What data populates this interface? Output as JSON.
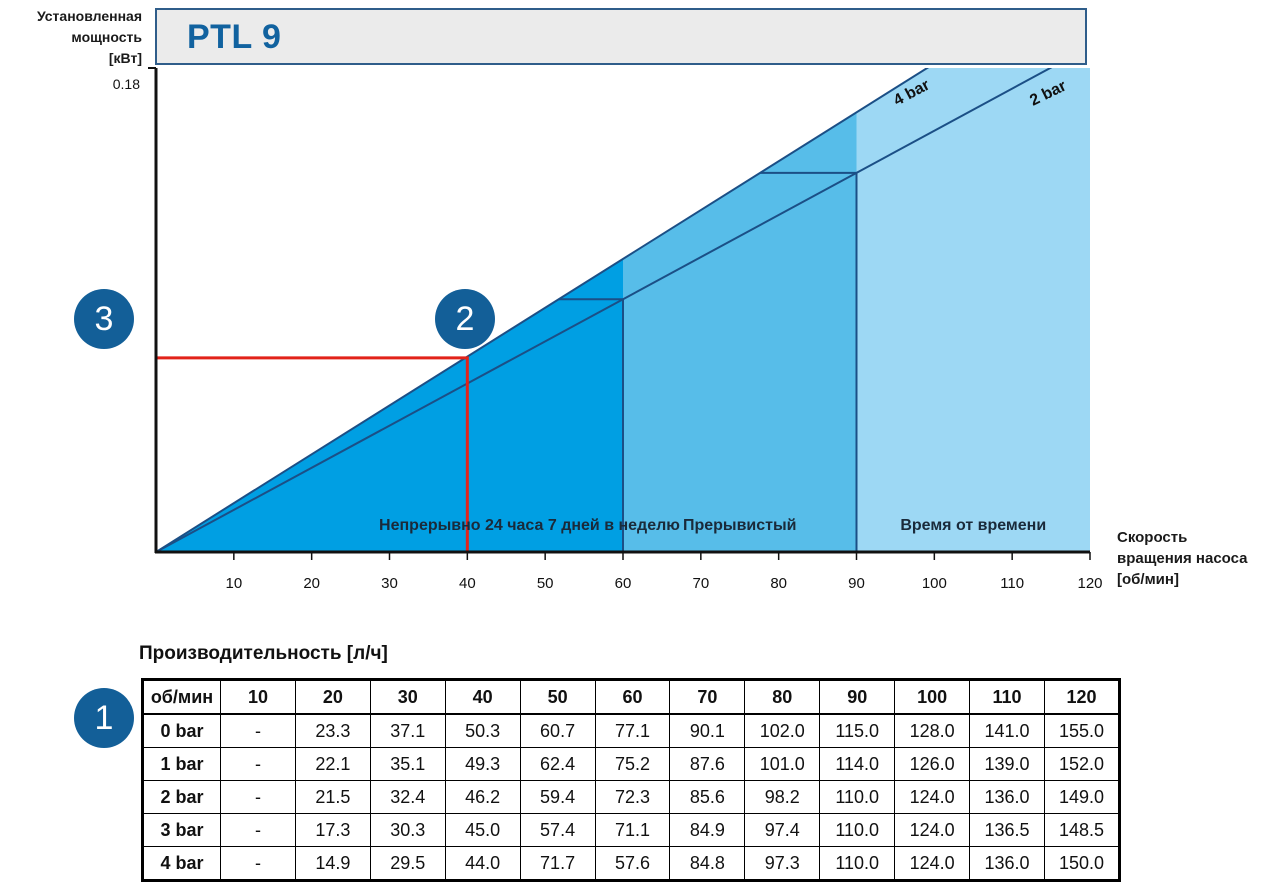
{
  "header": {
    "title": "PTL 9"
  },
  "chart_data": {
    "type": "area",
    "title": "PTL 9",
    "ylabel": [
      "Установленная",
      "мощность",
      "[кВт]"
    ],
    "xlabel": [
      "Скорость",
      "вращения насоса",
      "[об/мин]"
    ],
    "ylim": [
      0,
      0.18
    ],
    "xlim": [
      0,
      120
    ],
    "y_tick_labels": [
      "0.18"
    ],
    "x_ticks": [
      10,
      20,
      30,
      40,
      50,
      60,
      70,
      80,
      90,
      100,
      110,
      120
    ],
    "series": [
      {
        "name": "4 bar",
        "x": [
          0,
          120
        ],
        "y": [
          0,
          0.218
        ]
      },
      {
        "name": "2 bar",
        "x": [
          0,
          120
        ],
        "y": [
          0,
          0.188
        ]
      }
    ],
    "zones": [
      {
        "label": "Непрерывно 24 часа 7 дней в неделю",
        "x_from": 0,
        "x_to": 60,
        "color": "#009fe3"
      },
      {
        "label": "Прерывистый",
        "x_from": 60,
        "x_to": 90,
        "color": "#57bde9"
      },
      {
        "label": "Время от времени",
        "x_from": 90,
        "x_to": 120,
        "color": "#9dd8f4"
      }
    ],
    "marker": {
      "x": 40,
      "y": 0.0722,
      "color": "#e2231a"
    },
    "callouts": [
      "1",
      "2",
      "3"
    ]
  },
  "table": {
    "title": "Производительность [л/ч]",
    "headers": [
      "об/мин",
      "10",
      "20",
      "30",
      "40",
      "50",
      "60",
      "70",
      "80",
      "90",
      "100",
      "110",
      "120"
    ],
    "rows": [
      [
        "0 bar",
        "-",
        "23.3",
        "37.1",
        "50.3",
        "60.7",
        "77.1",
        "90.1",
        "102.0",
        "115.0",
        "128.0",
        "141.0",
        "155.0"
      ],
      [
        "1 bar",
        "-",
        "22.1",
        "35.1",
        "49.3",
        "62.4",
        "75.2",
        "87.6",
        "101.0",
        "114.0",
        "126.0",
        "139.0",
        "152.0"
      ],
      [
        "2 bar",
        "-",
        "21.5",
        "32.4",
        "46.2",
        "59.4",
        "72.3",
        "85.6",
        "98.2",
        "110.0",
        "124.0",
        "136.0",
        "149.0"
      ],
      [
        "3 bar",
        "-",
        "17.3",
        "30.3",
        "45.0",
        "57.4",
        "71.1",
        "84.9",
        "97.4",
        "110.0",
        "124.0",
        "136.5",
        "148.5"
      ],
      [
        "4 bar",
        "-",
        "14.9",
        "29.5",
        "44.0",
        "71.7",
        "57.6",
        "84.8",
        "97.3",
        "110.0",
        "124.0",
        "136.0",
        "150.0"
      ]
    ]
  }
}
